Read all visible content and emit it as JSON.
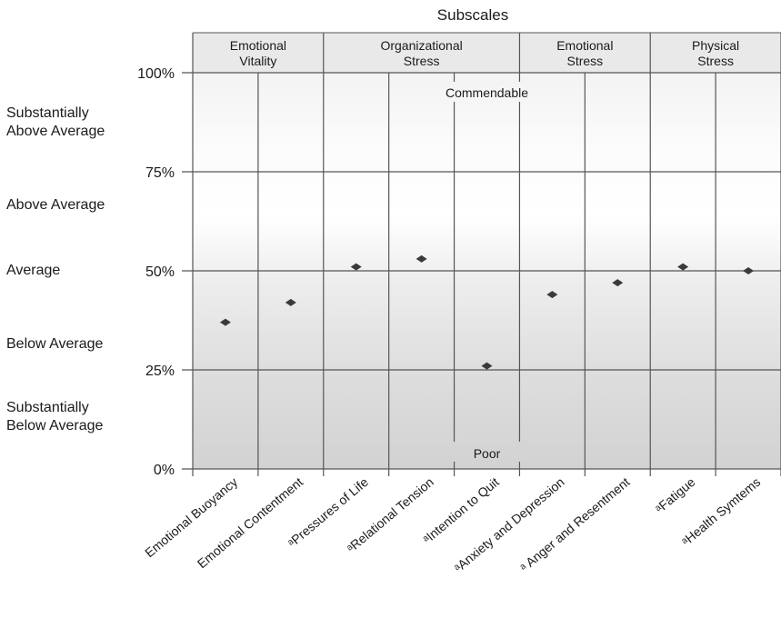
{
  "chart_data": {
    "type": "scatter",
    "title": "Subscales",
    "groups": [
      {
        "label": "Emotional\nVitality",
        "span": [
          0,
          1
        ]
      },
      {
        "label": "Organizational\nStress",
        "span": [
          2,
          4
        ]
      },
      {
        "label": "Emotional\nStress",
        "span": [
          5,
          6
        ]
      },
      {
        "label": "Physical\nStress",
        "span": [
          7,
          8
        ]
      }
    ],
    "categories": [
      "Emotional Buoyancy",
      "Emotional Contentment",
      "ᵃPressures of Life",
      "ᵃRelational Tension",
      "ᵃIntention to Quit",
      "ᵃAnxiety and Depression",
      "ᵃ Anger and Resentment",
      "ᵃFatigue",
      "ᵃHealth Symtems"
    ],
    "values": [
      37,
      42,
      51,
      53,
      26,
      44,
      47,
      51,
      50
    ],
    "ylim": [
      0,
      100
    ],
    "yticks": [
      {
        "value": 0,
        "label": "0%"
      },
      {
        "value": 25,
        "label": "25%"
      },
      {
        "value": 50,
        "label": "50%"
      },
      {
        "value": 75,
        "label": "75%"
      },
      {
        "value": 100,
        "label": "100%"
      }
    ],
    "bands": [
      {
        "label": "Substantially\nAbove Average",
        "value": 87.5
      },
      {
        "label": "Above Average",
        "value": 66.5
      },
      {
        "label": "Average",
        "value": 50
      },
      {
        "label": "Below Average",
        "value": 31.5
      },
      {
        "label": "Substantially\nBelow Average",
        "value": 13
      }
    ],
    "annotations": {
      "top": "Commendable",
      "bottom": "Poor"
    },
    "grid": true
  }
}
